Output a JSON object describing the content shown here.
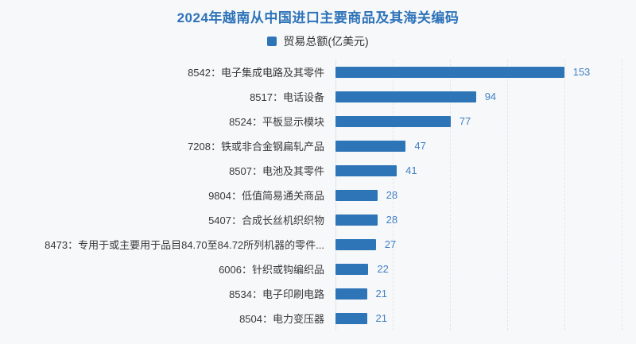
{
  "page": {
    "background_color": "#f7f8fa"
  },
  "header": {
    "title": "2024年越南从中国进口主要商品及其海关编码",
    "legend": {
      "label": "贸易总额(亿美元)"
    }
  },
  "chart_data": {
    "type": "bar",
    "orientation": "horizontal",
    "title": "2024年越南从中国进口主要商品及其海关编码",
    "legend_entries": [
      "贸易总额(亿美元)"
    ],
    "legend_position": "top",
    "categories": [
      "8542：电子集成电路及其零件",
      "8517：电话设备",
      "8524：平板显示模块",
      "7208：铁或非合金钢扁轧产品",
      "8507：电池及其零件",
      "9804：低值简易通关商品",
      "5407：合成长丝机织织物",
      "8473：专用于或主要用于品目84.70至84.72所列机器的零件...",
      "6006：针织或钩编织品",
      "8534：电子印刷电路",
      "8504：电力变压器"
    ],
    "series": [
      {
        "name": "贸易总额(亿美元)",
        "values": [
          153,
          94,
          77,
          47,
          41,
          28,
          28,
          27,
          22,
          21,
          21
        ]
      }
    ],
    "value_labels_shown": true,
    "xlim": [
      0,
      200
    ],
    "grid": {
      "vertical_gridlines": true,
      "gridline_style": "dashed",
      "gridline_count": 5
    },
    "colors": {
      "bar": "#2e75b8",
      "value_label": "#4080c4",
      "category_label": "#383838",
      "title": "#2e73b8",
      "gridline": "#e3e5ea",
      "axis_line": "#e1e3e8",
      "background": "#f7f8fa"
    }
  }
}
